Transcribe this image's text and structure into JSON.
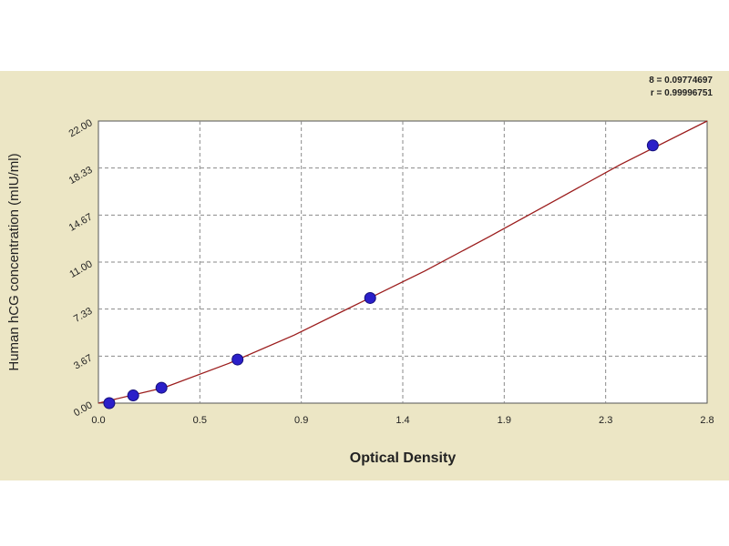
{
  "stats": {
    "line1": "8 = 0.09774697",
    "line2": "r = 0.99996751"
  },
  "chart_data": {
    "type": "scatter",
    "xlabel": "Optical Density",
    "ylabel": "Human hCG concentration (mIU/ml)",
    "xlim": [
      0.0,
      2.8
    ],
    "ylim": [
      0.0,
      22.0
    ],
    "x_ticks": [
      "0.0",
      "0.5",
      "0.9",
      "1.4",
      "1.9",
      "2.3",
      "2.8"
    ],
    "y_ticks": [
      "0.00",
      "3.67",
      "7.33",
      "11.00",
      "14.67",
      "18.33",
      "22.00"
    ],
    "grid": true,
    "series": [
      {
        "points": [
          {
            "x": 0.05,
            "y": 0.0
          },
          {
            "x": 0.16,
            "y": 0.6
          },
          {
            "x": 0.29,
            "y": 1.2
          },
          {
            "x": 0.64,
            "y": 3.4
          },
          {
            "x": 1.25,
            "y": 8.2
          },
          {
            "x": 2.55,
            "y": 20.1
          }
        ],
        "curve": [
          {
            "x": 0.0,
            "y": 0.0
          },
          {
            "x": 0.3,
            "y": 1.2
          },
          {
            "x": 0.6,
            "y": 3.1
          },
          {
            "x": 0.9,
            "y": 5.3
          },
          {
            "x": 1.2,
            "y": 7.8
          },
          {
            "x": 1.5,
            "y": 10.3
          },
          {
            "x": 1.8,
            "y": 13.0
          },
          {
            "x": 2.1,
            "y": 15.8
          },
          {
            "x": 2.4,
            "y": 18.6
          },
          {
            "x": 2.8,
            "y": 22.0
          }
        ],
        "point_color": "#2b1fc9",
        "line_color": "#9b1c1c"
      }
    ]
  }
}
